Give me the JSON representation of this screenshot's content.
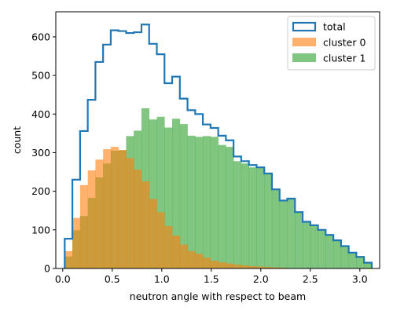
{
  "chart_data": {
    "type": "bar",
    "xlabel": "neutron angle with respect to beam",
    "ylabel": "count",
    "xlim": [
      -0.07,
      3.2
    ],
    "ylim": [
      0,
      665
    ],
    "xticks": [
      0.0,
      0.5,
      1.0,
      1.5,
      2.0,
      2.5,
      3.0
    ],
    "xtick_labels": [
      "0.0",
      "0.5",
      "1.0",
      "1.5",
      "2.0",
      "2.5",
      "3.0"
    ],
    "yticks": [
      0,
      100,
      200,
      300,
      400,
      500,
      600
    ],
    "ytick_labels": [
      "0",
      "100",
      "200",
      "300",
      "400",
      "500",
      "600"
    ],
    "grid": false,
    "legend_position": "top-right",
    "bins": {
      "start": 0.02,
      "width": 0.0775,
      "count": 40
    },
    "series": [
      {
        "name": "total",
        "style": "step",
        "color": "#1f77b4",
        "values": [
          77,
          230,
          356,
          437,
          535,
          580,
          617,
          615,
          610,
          612,
          632,
          582,
          555,
          480,
          497,
          440,
          410,
          400,
          373,
          364,
          344,
          332,
          290,
          278,
          268,
          262,
          246,
          205,
          176,
          181,
          146,
          121,
          112,
          100,
          87,
          73,
          58,
          41,
          30,
          15
        ]
      },
      {
        "name": "cluster 0",
        "style": "filled",
        "color": "#ff7f0e",
        "values": [
          45,
          131,
          216,
          254,
          282,
          309,
          315,
          307,
          286,
          256,
          226,
          180,
          146,
          110,
          85,
          62,
          45,
          38,
          28,
          20,
          16,
          13,
          10,
          8,
          6,
          5,
          4,
          3,
          2,
          1,
          1,
          1,
          0,
          0,
          0,
          0,
          0,
          0,
          0,
          0
        ]
      },
      {
        "name": "cluster 1",
        "style": "filled",
        "color": "#2ca02c",
        "values": [
          31,
          99,
          136,
          183,
          236,
          272,
          305,
          306,
          343,
          357,
          415,
          386,
          393,
          365,
          388,
          374,
          344,
          341,
          343,
          341,
          320,
          315,
          278,
          272,
          262,
          262,
          246,
          205,
          176,
          181,
          146,
          121,
          112,
          100,
          87,
          73,
          58,
          41,
          30,
          15
        ]
      }
    ]
  }
}
